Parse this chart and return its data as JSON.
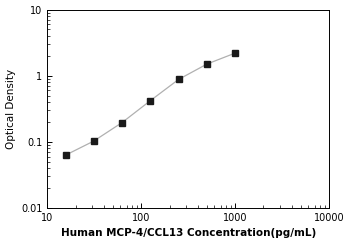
{
  "x_data": [
    15.625,
    31.25,
    62.5,
    125,
    250,
    500,
    1000
  ],
  "y_data": [
    0.063,
    0.103,
    0.196,
    0.42,
    0.88,
    1.5,
    2.2
  ],
  "xlabel": "Human MCP-4/CCL13 Concentration(pg/mL)",
  "ylabel": "Optical Density",
  "xlim": [
    10,
    10000
  ],
  "ylim": [
    0.01,
    10
  ],
  "xticks": [
    10,
    100,
    1000,
    10000
  ],
  "xtick_labels": [
    "10",
    "100",
    "1000",
    "10000"
  ],
  "yticks": [
    0.01,
    0.1,
    1,
    10
  ],
  "ytick_labels": [
    "0.01",
    "0.1",
    "1",
    "10"
  ],
  "line_color": "#b0b0b0",
  "marker_color": "#1a1a1a",
  "marker": "s",
  "marker_size": 4,
  "line_width": 0.9,
  "background_color": "#ffffff",
  "xlabel_fontsize": 7.5,
  "ylabel_fontsize": 7.5,
  "tick_fontsize": 7,
  "xlabel_bold": true
}
